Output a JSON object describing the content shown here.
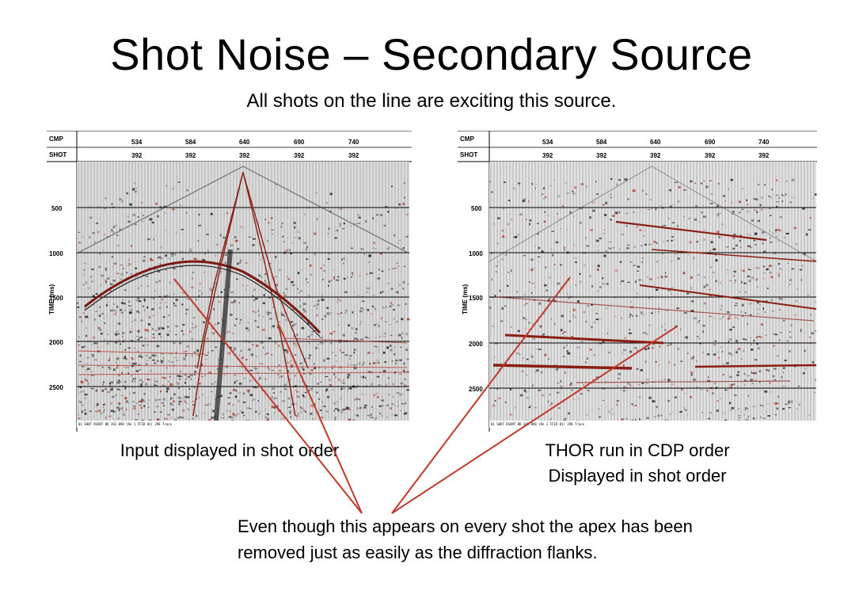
{
  "slide": {
    "title": "Shot Noise – Secondary Source",
    "subtitle": "All shots on the line are exciting this source."
  },
  "colors": {
    "arrow": "#c0392b",
    "seismic_red": "#b03020",
    "seismic_dark": "#1a1a1a"
  },
  "panels": [
    {
      "header_labels": [
        "CMP",
        "SHOT"
      ],
      "cmp_ticks": [
        "534",
        "584",
        "640",
        "690",
        "740"
      ],
      "shot_ticks": [
        "392",
        "392",
        "392",
        "392",
        "392"
      ],
      "time_ticks": [
        "500",
        "1000",
        "1500",
        "2000",
        "2500"
      ],
      "y_axis_label": "TIME (ms)",
      "footer": "01 SHOT RSORT BD 392 898 (Rn 1 FFID 81) 298 Trace",
      "caption_lines": [
        "Input displayed in shot order"
      ]
    },
    {
      "header_labels": [
        "CMP",
        "SHOT"
      ],
      "cmp_ticks": [
        "534",
        "584",
        "640",
        "690",
        "740"
      ],
      "shot_ticks": [
        "392",
        "392",
        "392",
        "392",
        "392"
      ],
      "time_ticks": [
        "500",
        "1000",
        "1500",
        "2000",
        "2500"
      ],
      "y_axis_label": "TIME (ms)",
      "footer": "01 SHOT RSORT BD 392 898 (Rn 1 FFID 81) 298 Trace",
      "caption_lines": [
        "THOR run in CDP order",
        "Displayed in shot order"
      ]
    }
  ],
  "annotation": {
    "lines": [
      "Even though this appears on every shot the apex has been",
      "removed just as easily as the diffraction flanks."
    ]
  }
}
